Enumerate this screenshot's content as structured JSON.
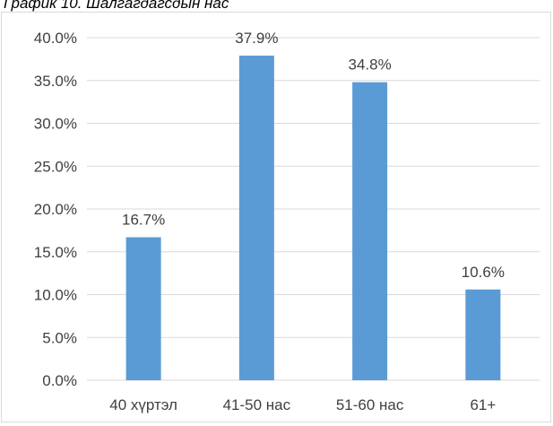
{
  "caption": "График 10. Шалгагдагсдын нас",
  "chart_data": {
    "type": "bar",
    "title": "",
    "xlabel": "",
    "ylabel": "",
    "categories": [
      "40 хүртэл",
      "41-50 нас",
      "51-60 нас",
      "61+"
    ],
    "values": [
      16.7,
      37.9,
      34.8,
      10.6
    ],
    "data_labels": [
      "16.7%",
      "37.9%",
      "34.8%",
      "10.6%"
    ],
    "ylim": [
      0,
      40
    ],
    "y_ticks": [
      {
        "value": 0,
        "label": "0.0%"
      },
      {
        "value": 5,
        "label": "5.0%"
      },
      {
        "value": 10,
        "label": "10.0%"
      },
      {
        "value": 15,
        "label": "15.0%"
      },
      {
        "value": 20,
        "label": "20.0%"
      },
      {
        "value": 25,
        "label": "25.0%"
      },
      {
        "value": 30,
        "label": "30.0%"
      },
      {
        "value": 35,
        "label": "35.0%"
      },
      {
        "value": 40,
        "label": "40.0%"
      }
    ],
    "grid": true,
    "legend": "none",
    "bar_color": "#5b9bd5",
    "gridline_color": "#d9d9d9",
    "text_color": "#404040"
  }
}
